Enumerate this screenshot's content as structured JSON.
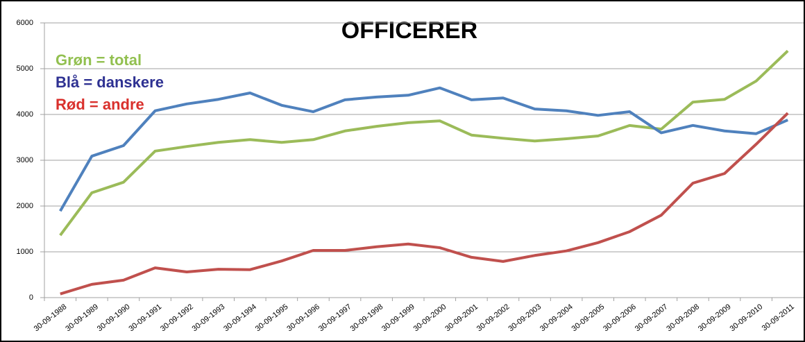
{
  "chart_data": {
    "type": "line",
    "title": "OFFICERER",
    "categories": [
      "30-09-1988",
      "30-09-1989",
      "30-09-1990",
      "30-09-1991",
      "30-09-1992",
      "30-09-1993",
      "30-09-1994",
      "30-09-1995",
      "30-09-1996",
      "30-09-1997",
      "30-09-1998",
      "30-09-1999",
      "30-09-2000",
      "30-09-2001",
      "30-09-2002",
      "30-09-2003",
      "30-09-2004",
      "30-09-2005",
      "30-09-2006",
      "30-09-2007",
      "30-09-2008",
      "30-09-2009",
      "30-09-2010",
      "30-09-2011"
    ],
    "series": [
      {
        "name": "Grøn = total",
        "color": "#9bbb59",
        "legend_color": "#92c050",
        "values": [
          1360,
          2290,
          2520,
          3200,
          3300,
          3390,
          3450,
          3390,
          3450,
          3640,
          3740,
          3820,
          3860,
          3550,
          3480,
          3420,
          3470,
          3530,
          3760,
          3680,
          4270,
          4330,
          4730,
          5390
        ]
      },
      {
        "name": "Blå = danskere",
        "color": "#4f81bd",
        "legend_color": "#2e3192",
        "values": [
          1890,
          3090,
          3320,
          4080,
          4230,
          4330,
          4470,
          4200,
          4060,
          4320,
          4380,
          4420,
          4580,
          4320,
          4360,
          4120,
          4080,
          3980,
          4060,
          3600,
          3760,
          3640,
          3580,
          3880
        ]
      },
      {
        "name": "Rød = andre",
        "color": "#c0504d",
        "legend_color": "#d9302c",
        "values": [
          80,
          290,
          380,
          650,
          560,
          620,
          610,
          800,
          1030,
          1030,
          1110,
          1170,
          1090,
          880,
          790,
          920,
          1020,
          1200,
          1440,
          1800,
          2500,
          2710,
          3350,
          4030
        ]
      }
    ],
    "ylim": [
      0,
      6000
    ],
    "yticks": [
      0,
      1000,
      2000,
      3000,
      4000,
      5000,
      6000
    ],
    "grid": true
  }
}
